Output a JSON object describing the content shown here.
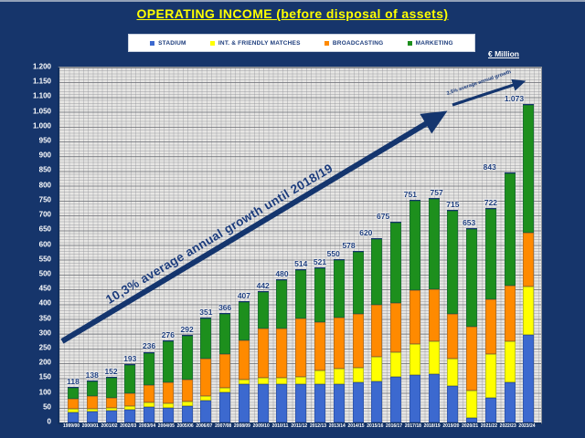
{
  "title": "OPERATING INCOME (before disposal of assets)",
  "unit_label": "€ Million",
  "legend": [
    {
      "label": "STADIUM",
      "color": "#3c69cf"
    },
    {
      "label": "INT. & FRIENDLY MATCHES",
      "color": "#ffff00"
    },
    {
      "label": "BROADCASTING",
      "color": "#ff8a00"
    },
    {
      "label": "MARKETING",
      "color": "#1d8f1d"
    }
  ],
  "chart_data": {
    "type": "bar",
    "stacked": true,
    "title": "OPERATING INCOME (before disposal of assets)",
    "ylabel": "€ Million",
    "xlabel": "",
    "ylim": [
      0,
      1200
    ],
    "ytick_step": 50,
    "grid": true,
    "legend_position": "top",
    "yticks": [
      "0",
      "50",
      "100",
      "150",
      "200",
      "250",
      "300",
      "350",
      "400",
      "450",
      "500",
      "550",
      "600",
      "650",
      "700",
      "750",
      "800",
      "850",
      "900",
      "950",
      "1.000",
      "1.050",
      "1.100",
      "1.150",
      "1.200"
    ],
    "categories": [
      "1999/00",
      "2000/01",
      "2001/02",
      "2002/03",
      "2003/04",
      "2004/05",
      "2005/06",
      "2006/07",
      "2007/08",
      "2008/09",
      "2009/10",
      "2010/11",
      "2011/12",
      "2012/13",
      "2013/14",
      "2014/15",
      "2015/16",
      "2016/17",
      "2017/18",
      "2018/19",
      "2019/20",
      "2020/21",
      "2021/22",
      "2022/23",
      "2023/24"
    ],
    "series": [
      {
        "name": "STADIUM",
        "color": "#3c69cf",
        "values": [
          35,
          37,
          39,
          44,
          52,
          49,
          55,
          73,
          102,
          130,
          130,
          130,
          130,
          130,
          130,
          135,
          140,
          155,
          160,
          163,
          124,
          16,
          83,
          135,
          296
        ]
      },
      {
        "name": "INT. & FRIENDLY MATCHES",
        "color": "#ffff00",
        "values": [
          10,
          10,
          10,
          12,
          15,
          16,
          16,
          15,
          15,
          15,
          21,
          21,
          25,
          46,
          51,
          51,
          82,
          82,
          105,
          111,
          93,
          93,
          149,
          139,
          165
        ]
      },
      {
        "name": "BROADCASTING",
        "color": "#ff8a00",
        "values": [
          35,
          41,
          34,
          43,
          60,
          72,
          75,
          128,
          115,
          134,
          168,
          167,
          196,
          164,
          175,
          180,
          175,
          166,
          181,
          175,
          149,
          216,
          186,
          190,
          180
        ]
      },
      {
        "name": "MARKETING",
        "color": "#1d8f1d",
        "values": [
          38,
          50,
          69,
          94,
          109,
          139,
          146,
          135,
          134,
          128,
          123,
          162,
          163,
          181,
          194,
          212,
          223,
          272,
          305,
          308,
          349,
          328,
          304,
          379,
          432
        ]
      }
    ],
    "totals": [
      118,
      138,
      152,
      193,
      236,
      276,
      292,
      351,
      366,
      407,
      442,
      480,
      514,
      521,
      550,
      578,
      620,
      675,
      751,
      757,
      715,
      653,
      722,
      843,
      1073
    ],
    "total_labels": [
      "118",
      "138",
      "152",
      "193",
      "236",
      "276",
      "292",
      "351",
      "366",
      "407",
      "442",
      "480",
      "514",
      "521",
      "550",
      "578",
      "620",
      "675",
      "751",
      "757",
      "715",
      "653",
      "722",
      "843",
      "1.073"
    ],
    "annotations": [
      {
        "text": "10,3% average annual growth until 2018/19"
      },
      {
        "text": "2,5% average annual growth"
      }
    ]
  }
}
